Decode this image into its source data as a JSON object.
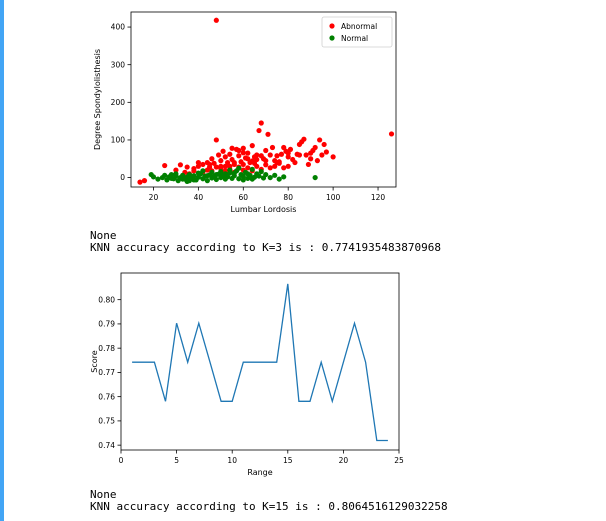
{
  "notebook": {
    "accent_color": "#42a5f5",
    "output1": {
      "line1": "None",
      "line2": "KNN accuracy according to K=3 is : 0.7741935483870968"
    },
    "output2": {
      "line1": "None",
      "line2": "KNN accuracy according to K=15 is : 0.8064516129032258"
    }
  },
  "chart_data": [
    {
      "type": "scatter",
      "xlabel": "Lumbar Lordosis",
      "ylabel": "Degree Spondylolisthesis",
      "xlim": [
        10,
        128
      ],
      "ylim": [
        -25,
        440
      ],
      "xticks": [
        20,
        40,
        60,
        80,
        100,
        120
      ],
      "yticks": [
        0,
        100,
        200,
        300,
        400
      ],
      "legend": "top-right",
      "series": [
        {
          "name": "Abnormal",
          "color": "#ff0000",
          "points": [
            [
              48,
              418
            ],
            [
              126,
              116
            ],
            [
              16,
              -8
            ],
            [
              14,
              -12
            ],
            [
              25,
              32
            ],
            [
              30,
              20
            ],
            [
              32,
              34
            ],
            [
              35,
              28
            ],
            [
              38,
              24
            ],
            [
              40,
              30
            ],
            [
              42,
              35
            ],
            [
              44,
              40
            ],
            [
              45,
              28
            ],
            [
              46,
              50
            ],
            [
              47,
              38
            ],
            [
              48,
              100
            ],
            [
              49,
              60
            ],
            [
              50,
              45
            ],
            [
              51,
              70
            ],
            [
              52,
              55
            ],
            [
              53,
              40
            ],
            [
              54,
              62
            ],
            [
              55,
              48
            ],
            [
              56,
              35
            ],
            [
              57,
              75
            ],
            [
              58,
              58
            ],
            [
              59,
              42
            ],
            [
              60,
              78
            ],
            [
              61,
              52
            ],
            [
              62,
              65
            ],
            [
              63,
              40
            ],
            [
              64,
              85
            ],
            [
              65,
              55
            ],
            [
              66,
              60
            ],
            [
              67,
              125
            ],
            [
              68,
              145
            ],
            [
              69,
              50
            ],
            [
              70,
              72
            ],
            [
              71,
              115
            ],
            [
              72,
              60
            ],
            [
              73,
              80
            ],
            [
              74,
              45
            ],
            [
              75,
              58
            ],
            [
              76,
              38
            ],
            [
              77,
              62
            ],
            [
              78,
              80
            ],
            [
              79,
              70
            ],
            [
              80,
              55
            ],
            [
              81,
              75
            ],
            [
              82,
              48
            ],
            [
              83,
              40
            ],
            [
              84,
              62
            ],
            [
              85,
              88
            ],
            [
              86,
              95
            ],
            [
              87,
              102
            ],
            [
              88,
              60
            ],
            [
              89,
              35
            ],
            [
              90,
              50
            ],
            [
              91,
              72
            ],
            [
              92,
              80
            ],
            [
              93,
              45
            ],
            [
              94,
              100
            ],
            [
              95,
              60
            ],
            [
              96,
              88
            ],
            [
              97,
              68
            ],
            [
              100,
              55
            ],
            [
              44,
              20
            ],
            [
              46,
              18
            ],
            [
              50,
              24
            ],
            [
              52,
              30
            ],
            [
              54,
              22
            ],
            [
              56,
              14
            ],
            [
              58,
              28
            ],
            [
              60,
              20
            ],
            [
              62,
              26
            ],
            [
              64,
              18
            ],
            [
              66,
              30
            ],
            [
              68,
              22
            ],
            [
              70,
              34
            ],
            [
              72,
              26
            ],
            [
              74,
              30
            ],
            [
              76,
              42
            ],
            [
              78,
              26
            ],
            [
              80,
              30
            ],
            [
              42,
              15
            ],
            [
              38,
              18
            ],
            [
              36,
              10
            ],
            [
              34,
              14
            ],
            [
              48,
              28
            ],
            [
              50,
              12
            ],
            [
              52,
              18
            ],
            [
              54,
              30
            ],
            [
              56,
              40
            ],
            [
              60,
              35
            ],
            [
              65,
              38
            ],
            [
              70,
              45
            ],
            [
              75,
              40
            ],
            [
              80,
              65
            ],
            [
              85,
              60
            ],
            [
              90,
              65
            ],
            [
              58,
              72
            ],
            [
              60,
              66
            ],
            [
              62,
              50
            ],
            [
              64,
              44
            ],
            [
              66,
              48
            ],
            [
              68,
              58
            ],
            [
              55,
              78
            ],
            [
              50,
              30
            ],
            [
              45,
              35
            ],
            [
              40,
              40
            ]
          ]
        },
        {
          "name": "Normal",
          "color": "#008000",
          "points": [
            [
              19,
              8
            ],
            [
              20,
              2
            ],
            [
              22,
              -4
            ],
            [
              24,
              0
            ],
            [
              25,
              6
            ],
            [
              26,
              -6
            ],
            [
              27,
              2
            ],
            [
              28,
              8
            ],
            [
              29,
              -3
            ],
            [
              30,
              4
            ],
            [
              31,
              -8
            ],
            [
              32,
              0
            ],
            [
              33,
              6
            ],
            [
              34,
              -4
            ],
            [
              35,
              2
            ],
            [
              36,
              8
            ],
            [
              37,
              -2
            ],
            [
              38,
              5
            ],
            [
              39,
              -6
            ],
            [
              40,
              1
            ],
            [
              41,
              10
            ],
            [
              42,
              -3
            ],
            [
              43,
              4
            ],
            [
              44,
              -8
            ],
            [
              45,
              7
            ],
            [
              46,
              -1
            ],
            [
              47,
              3
            ],
            [
              48,
              -5
            ],
            [
              49,
              9
            ],
            [
              50,
              0
            ],
            [
              51,
              6
            ],
            [
              52,
              -4
            ],
            [
              53,
              2
            ],
            [
              54,
              12
            ],
            [
              55,
              -2
            ],
            [
              56,
              5
            ],
            [
              57,
              18
            ],
            [
              58,
              -3
            ],
            [
              59,
              8
            ],
            [
              60,
              3
            ],
            [
              61,
              14
            ],
            [
              62,
              -2
            ],
            [
              63,
              6
            ],
            [
              64,
              22
            ],
            [
              65,
              1
            ],
            [
              66,
              10
            ],
            [
              67,
              4
            ],
            [
              68,
              16
            ],
            [
              69,
              -1
            ],
            [
              70,
              8
            ],
            [
              72,
              0
            ],
            [
              74,
              6
            ],
            [
              76,
              -4
            ],
            [
              78,
              2
            ],
            [
              92,
              0
            ],
            [
              35,
              -10
            ],
            [
              38,
              -6
            ],
            [
              40,
              12
            ],
            [
              42,
              18
            ],
            [
              44,
              5
            ],
            [
              46,
              14
            ],
            [
              48,
              8
            ],
            [
              50,
              16
            ],
            [
              52,
              10
            ],
            [
              54,
              20
            ],
            [
              56,
              12
            ],
            [
              58,
              25
            ],
            [
              60,
              -6
            ],
            [
              62,
              10
            ],
            [
              64,
              -4
            ],
            [
              30,
              10
            ],
            [
              33,
              -4
            ],
            [
              36,
              -8
            ],
            [
              28,
              -2
            ]
          ]
        }
      ]
    },
    {
      "type": "line",
      "xlabel": "Range",
      "ylabel": "Score",
      "xlim": [
        0,
        25
      ],
      "ylim": [
        0.738,
        0.811
      ],
      "xticks": [
        0,
        5,
        10,
        15,
        20,
        25
      ],
      "yticks": [
        0.74,
        0.75,
        0.76,
        0.77,
        0.78,
        0.79,
        0.8
      ],
      "series": [
        {
          "color": "#1f77b4",
          "x": [
            1,
            2,
            3,
            4,
            5,
            6,
            7,
            8,
            9,
            10,
            11,
            12,
            13,
            14,
            15,
            16,
            17,
            18,
            19,
            20,
            21,
            22,
            23,
            24
          ],
          "values": [
            0.7742,
            0.7742,
            0.7742,
            0.7581,
            0.7903,
            0.7742,
            0.7903,
            0.7742,
            0.7581,
            0.7581,
            0.7742,
            0.7742,
            0.7742,
            0.7742,
            0.8065,
            0.7581,
            0.7581,
            0.7742,
            0.7581,
            0.7742,
            0.7903,
            0.7742,
            0.7419,
            0.7419
          ]
        }
      ]
    }
  ]
}
